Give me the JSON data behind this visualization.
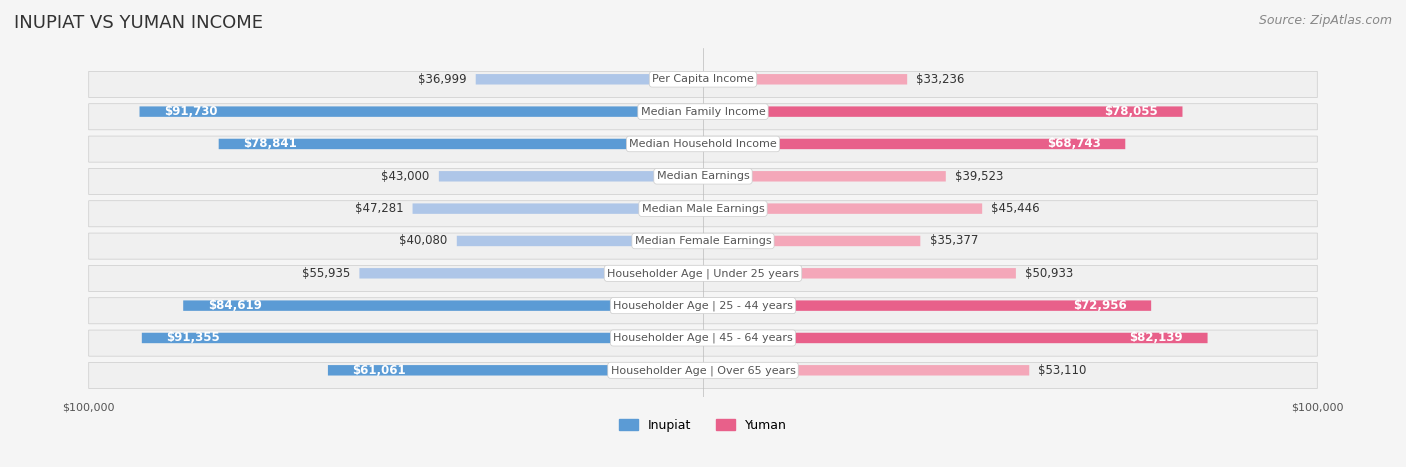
{
  "title": "INUPIAT VS YUMAN INCOME",
  "source": "Source: ZipAtlas.com",
  "categories": [
    "Per Capita Income",
    "Median Family Income",
    "Median Household Income",
    "Median Earnings",
    "Median Male Earnings",
    "Median Female Earnings",
    "Householder Age | Under 25 years",
    "Householder Age | 25 - 44 years",
    "Householder Age | 45 - 64 years",
    "Householder Age | Over 65 years"
  ],
  "inupiat_values": [
    36999,
    91730,
    78841,
    43000,
    47281,
    40080,
    55935,
    84619,
    91355,
    61061
  ],
  "yuman_values": [
    33236,
    78055,
    68743,
    39523,
    45446,
    35377,
    50933,
    72956,
    82139,
    53110
  ],
  "inupiat_labels": [
    "$36,999",
    "$91,730",
    "$78,841",
    "$43,000",
    "$47,281",
    "$40,080",
    "$55,935",
    "$84,619",
    "$91,355",
    "$61,061"
  ],
  "yuman_labels": [
    "$33,236",
    "$78,055",
    "$68,743",
    "$39,523",
    "$45,446",
    "$35,377",
    "$50,933",
    "$72,956",
    "$82,139",
    "$53,110"
  ],
  "max_value": 100000,
  "inupiat_color_light": "#aec6e8",
  "inupiat_color_dark": "#5b9bd5",
  "yuman_color_light": "#f4a7b9",
  "yuman_color_dark": "#e8608a",
  "background_color": "#f5f5f5",
  "row_bg_color": "#ececec",
  "label_box_color": "#ffffff",
  "title_fontsize": 13,
  "source_fontsize": 9,
  "bar_label_fontsize": 8.5,
  "category_fontsize": 8,
  "axis_label_fontsize": 8,
  "legend_fontsize": 9
}
